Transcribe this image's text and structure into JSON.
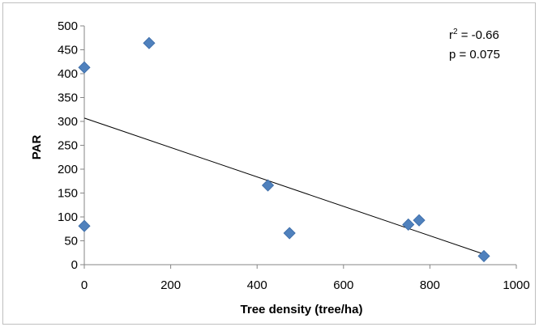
{
  "chart_data": {
    "type": "scatter",
    "xlabel": "Tree density (tree/ha)",
    "ylabel": "PAR",
    "xlim": [
      0,
      1000
    ],
    "ylim": [
      0,
      500
    ],
    "xticks": [
      0,
      200,
      400,
      600,
      800,
      1000
    ],
    "yticks": [
      0,
      50,
      100,
      150,
      200,
      250,
      300,
      350,
      400,
      450,
      500
    ],
    "marker": "diamond",
    "marker_color": "#4f81bd",
    "grid": false,
    "points": [
      {
        "x": 0,
        "y": 413
      },
      {
        "x": 0,
        "y": 81
      },
      {
        "x": 150,
        "y": 464
      },
      {
        "x": 425,
        "y": 166
      },
      {
        "x": 475,
        "y": 66
      },
      {
        "x": 750,
        "y": 84
      },
      {
        "x": 775,
        "y": 93
      },
      {
        "x": 925,
        "y": 18
      }
    ],
    "trendline": {
      "x_start": 0,
      "y_start": 307,
      "x_end": 925,
      "y_end": 22,
      "color": "#000000"
    },
    "annotations": {
      "r2_prefix": "r",
      "r2_sup": "2",
      "r2_value": " = -0.66",
      "p": "p = 0.075"
    }
  }
}
